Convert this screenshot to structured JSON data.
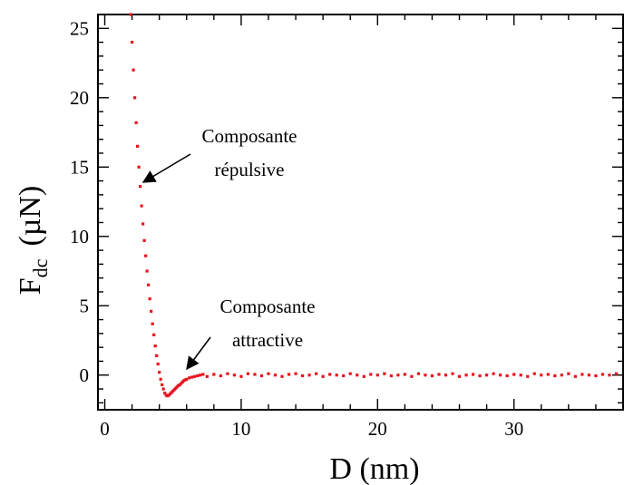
{
  "chart_data": {
    "type": "scatter",
    "xlabel": "D  (nm)",
    "ylabel_main": "F",
    "ylabel_sub": "dc",
    "ylabel_unit": "(µN)",
    "xlim": [
      -0.5,
      38
    ],
    "ylim": [
      -2.5,
      26
    ],
    "xticks": [
      0,
      10,
      20,
      30
    ],
    "yticks": [
      0,
      5,
      10,
      15,
      20,
      25
    ],
    "grid": false,
    "series_color": "#e8131f",
    "series": [
      {
        "name": "",
        "x": [
          1.9,
          2.0,
          2.1,
          2.2,
          2.3,
          2.4,
          2.5,
          2.6,
          2.7,
          2.8,
          2.9,
          3.0,
          3.1,
          3.2,
          3.3,
          3.4,
          3.5,
          3.6,
          3.7,
          3.8,
          3.9,
          4.0,
          4.1,
          4.2,
          4.3,
          4.4,
          4.5,
          4.6,
          4.7,
          4.8,
          4.9,
          5.0,
          5.1,
          5.2,
          5.3,
          5.4,
          5.5,
          5.6,
          5.7,
          5.8,
          5.9,
          6.0,
          6.2,
          6.4,
          6.6,
          6.8,
          7.0,
          7.2,
          7.5,
          8.0,
          8.5,
          9.0,
          9.5,
          10.0,
          10.5,
          11.0,
          11.5,
          12.0,
          12.5,
          13.0,
          13.5,
          14.0,
          14.5,
          15.0,
          15.5,
          16.0,
          16.5,
          17.0,
          17.5,
          18.0,
          18.5,
          19.0,
          19.5,
          20.0,
          20.5,
          21.0,
          21.5,
          22.0,
          22.5,
          23.0,
          23.5,
          24.0,
          24.5,
          25.0,
          25.5,
          26.0,
          26.5,
          27.0,
          27.5,
          28.0,
          28.5,
          29.0,
          29.5,
          30.0,
          30.5,
          31.0,
          31.5,
          32.0,
          32.5,
          33.0,
          33.5,
          34.0,
          34.5,
          35.0,
          35.5,
          36.0,
          36.5,
          37.0,
          37.5
        ],
        "y": [
          26.0,
          24.0,
          22.0,
          20.0,
          18.2,
          16.5,
          15.0,
          13.6,
          12.2,
          10.9,
          9.7,
          8.6,
          7.5,
          6.5,
          5.5,
          4.6,
          3.7,
          2.9,
          2.1,
          1.4,
          0.8,
          0.2,
          -0.3,
          -0.7,
          -1.0,
          -1.3,
          -1.45,
          -1.5,
          -1.45,
          -1.35,
          -1.25,
          -1.15,
          -1.05,
          -0.95,
          -0.85,
          -0.75,
          -0.7,
          -0.6,
          -0.5,
          -0.4,
          -0.35,
          -0.3,
          -0.2,
          -0.15,
          -0.1,
          -0.05,
          0.0,
          0.05,
          -0.1,
          0.05,
          -0.05,
          0.1,
          0.0,
          -0.1,
          0.1,
          0.05,
          -0.05,
          0.1,
          0.0,
          -0.1,
          0.05,
          0.1,
          -0.05,
          0.0,
          0.1,
          -0.1,
          0.05,
          0.0,
          -0.05,
          0.1,
          0.0,
          -0.1,
          0.05,
          0.0,
          0.1,
          -0.05,
          0.0,
          0.05,
          -0.1,
          0.1,
          0.0,
          -0.05,
          0.05,
          0.0,
          0.1,
          -0.1,
          0.0,
          0.05,
          -0.05,
          0.0,
          0.1,
          0.0,
          -0.05,
          0.05,
          0.0,
          -0.1,
          0.1,
          0.0,
          0.05,
          -0.05,
          0.0,
          0.1,
          -0.1,
          0.05,
          0.0,
          -0.05,
          0.05,
          0.0,
          0.1
        ]
      }
    ],
    "annotations": [
      {
        "text_lines": [
          "Composante",
          "répulsive"
        ],
        "target": [
          2.5,
          13.8
        ]
      },
      {
        "text_lines": [
          "Composante",
          "attractive"
        ],
        "target": [
          5.8,
          -0.3
        ]
      }
    ]
  }
}
